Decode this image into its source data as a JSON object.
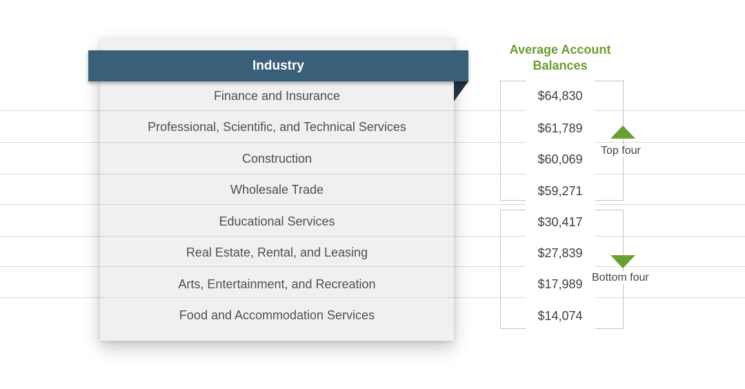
{
  "chart_data": {
    "type": "table",
    "column_headers": [
      "Industry",
      "Average Account Balances"
    ],
    "rows": [
      {
        "industry": "Finance and Insurance",
        "balance": "$64,830",
        "value": 64830
      },
      {
        "industry": "Professional, Scientific, and Technical Services",
        "balance": "$61,789",
        "value": 61789
      },
      {
        "industry": "Construction",
        "balance": "$60,069",
        "value": 60069
      },
      {
        "industry": "Wholesale Trade",
        "balance": "$59,271",
        "value": 59271
      },
      {
        "industry": "Educational Services",
        "balance": "$30,417",
        "value": 30417
      },
      {
        "industry": "Real Estate, Rental, and Leasing",
        "balance": "$27,839",
        "value": 27839
      },
      {
        "industry": "Arts, Entertainment, and Recreation",
        "balance": "$17,989",
        "value": 17989
      },
      {
        "industry": "Food and Accommodation Services",
        "balance": "$14,074",
        "value": 14074
      }
    ],
    "groups": [
      {
        "label": "Top four",
        "direction": "up"
      },
      {
        "label": "Bottom four",
        "direction": "down"
      }
    ]
  },
  "colors": {
    "header": "#3a5f79",
    "accent_green": "#6b9e33"
  }
}
